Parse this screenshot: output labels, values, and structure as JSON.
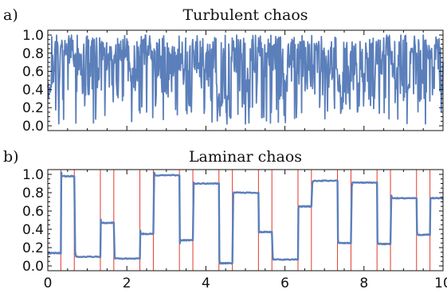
{
  "chart_data": [
    {
      "type": "line",
      "panel_label": "a)",
      "title": "Turbulent chaos",
      "xlim": [
        0,
        10
      ],
      "ylim": [
        0.0,
        1.0
      ],
      "yticks": [
        "0.0",
        "0.2",
        "0.4",
        "0.6",
        "0.8",
        "1.0"
      ],
      "xtick_labels_shown": false,
      "line_color": "#5b7fba",
      "generator": {
        "kind": "fluctuating",
        "seed": 7,
        "n_points": 900,
        "ymin": 0.02,
        "ymax": 1.0
      },
      "series": [
        {
          "x": [
            0,
            0.5,
            1,
            1.5,
            2,
            2.5,
            3,
            3.5,
            4,
            4.5,
            5,
            5.5,
            6,
            6.5,
            7,
            7.5,
            8,
            8.5,
            9,
            9.5,
            10
          ],
          "y": [
            0.38,
            0.95,
            0.35,
            0.9,
            0.6,
            0.98,
            0.2,
            0.85,
            0.4,
            0.05,
            0.9,
            0.5,
            0.97,
            0.3,
            0.88,
            0.15,
            0.75,
            0.98,
            0.4,
            0.95,
            0.7
          ]
        }
      ]
    },
    {
      "type": "line",
      "panel_label": "b)",
      "title": "Laminar chaos",
      "xlim": [
        0,
        10
      ],
      "ylim": [
        0.0,
        1.0
      ],
      "yticks": [
        "0.0",
        "0.2",
        "0.4",
        "0.6",
        "0.8",
        "1.0"
      ],
      "xticks": [
        "0",
        "2",
        "4",
        "6",
        "8",
        "10"
      ],
      "xtick_values": [
        0,
        2,
        4,
        6,
        8,
        10
      ],
      "line_color": "#5b7fba",
      "vline_color": "#e03a2e",
      "vlines": [
        0.33,
        0.67,
        1.33,
        1.67,
        2.33,
        2.67,
        3.33,
        3.67,
        4.33,
        4.67,
        5.33,
        5.67,
        6.33,
        6.67,
        7.33,
        7.67,
        8.33,
        8.67,
        9.33,
        9.67
      ],
      "plateaus": [
        {
          "x0": 0.0,
          "x1": 0.33,
          "y": 0.14
        },
        {
          "x0": 0.33,
          "x1": 0.67,
          "y": 0.98
        },
        {
          "x0": 0.67,
          "x1": 1.33,
          "y": 0.1
        },
        {
          "x0": 1.33,
          "x1": 1.67,
          "y": 0.47
        },
        {
          "x0": 1.67,
          "x1": 2.33,
          "y": 0.08
        },
        {
          "x0": 2.33,
          "x1": 2.67,
          "y": 0.35
        },
        {
          "x0": 2.67,
          "x1": 3.33,
          "y": 0.99
        },
        {
          "x0": 3.33,
          "x1": 3.67,
          "y": 0.28
        },
        {
          "x0": 3.67,
          "x1": 4.33,
          "y": 0.9
        },
        {
          "x0": 4.33,
          "x1": 4.67,
          "y": 0.03
        },
        {
          "x0": 4.67,
          "x1": 5.33,
          "y": 0.8
        },
        {
          "x0": 5.33,
          "x1": 5.67,
          "y": 0.37
        },
        {
          "x0": 5.67,
          "x1": 6.33,
          "y": 0.07
        },
        {
          "x0": 6.33,
          "x1": 6.67,
          "y": 0.65
        },
        {
          "x0": 6.67,
          "x1": 7.33,
          "y": 0.93
        },
        {
          "x0": 7.33,
          "x1": 7.67,
          "y": 0.25
        },
        {
          "x0": 7.67,
          "x1": 8.33,
          "y": 0.91
        },
        {
          "x0": 8.33,
          "x1": 8.67,
          "y": 0.24
        },
        {
          "x0": 8.67,
          "x1": 9.33,
          "y": 0.74
        },
        {
          "x0": 9.33,
          "x1": 9.67,
          "y": 0.34
        },
        {
          "x0": 9.67,
          "x1": 10.0,
          "y": 0.74
        }
      ]
    }
  ]
}
